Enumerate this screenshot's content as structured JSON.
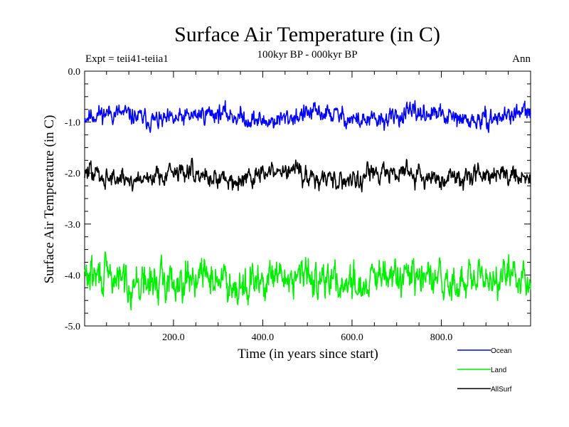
{
  "chart_data": {
    "type": "line",
    "title": "Surface Air Temperature (in C)",
    "subtitle": "100kyr BP - 000kyr BP",
    "left_label": "Expt = teii41-teiia1",
    "right_label": "Ann",
    "xlabel": "Time (in years since start)",
    "ylabel": "Surface Air Temperature (in C)",
    "xlim": [
      1,
      1000
    ],
    "ylim": [
      -5.0,
      0.0
    ],
    "x_ticks": [
      200,
      400,
      600,
      800
    ],
    "x_tick_labels": [
      "200.0",
      "400.0",
      "600.0",
      "800.0"
    ],
    "y_ticks": [
      0,
      -1,
      -2,
      -3,
      -4,
      -5
    ],
    "y_tick_labels": [
      "0.0",
      "-1.0",
      "-2.0",
      "-3.0",
      "-4.0",
      "-5.0"
    ],
    "grid": false,
    "legend_position": "bottom-right",
    "series": [
      {
        "name": "Ocean",
        "color": "#0000ff",
        "mean": -0.9,
        "amplitude": 0.28,
        "seed": 11,
        "values_note_min": -1.25,
        "values_note_max": -0.55
      },
      {
        "name": "Land",
        "color": "#00ee00",
        "mean": -4.1,
        "amplitude": 0.55,
        "seed": 29,
        "values_note_min": -4.8,
        "values_note_max": -3.45
      },
      {
        "name": "AllSurf",
        "color": "#000000",
        "mean": -2.05,
        "amplitude": 0.3,
        "seed": 47,
        "values_note_min": -2.45,
        "values_note_max": -1.65
      }
    ]
  }
}
